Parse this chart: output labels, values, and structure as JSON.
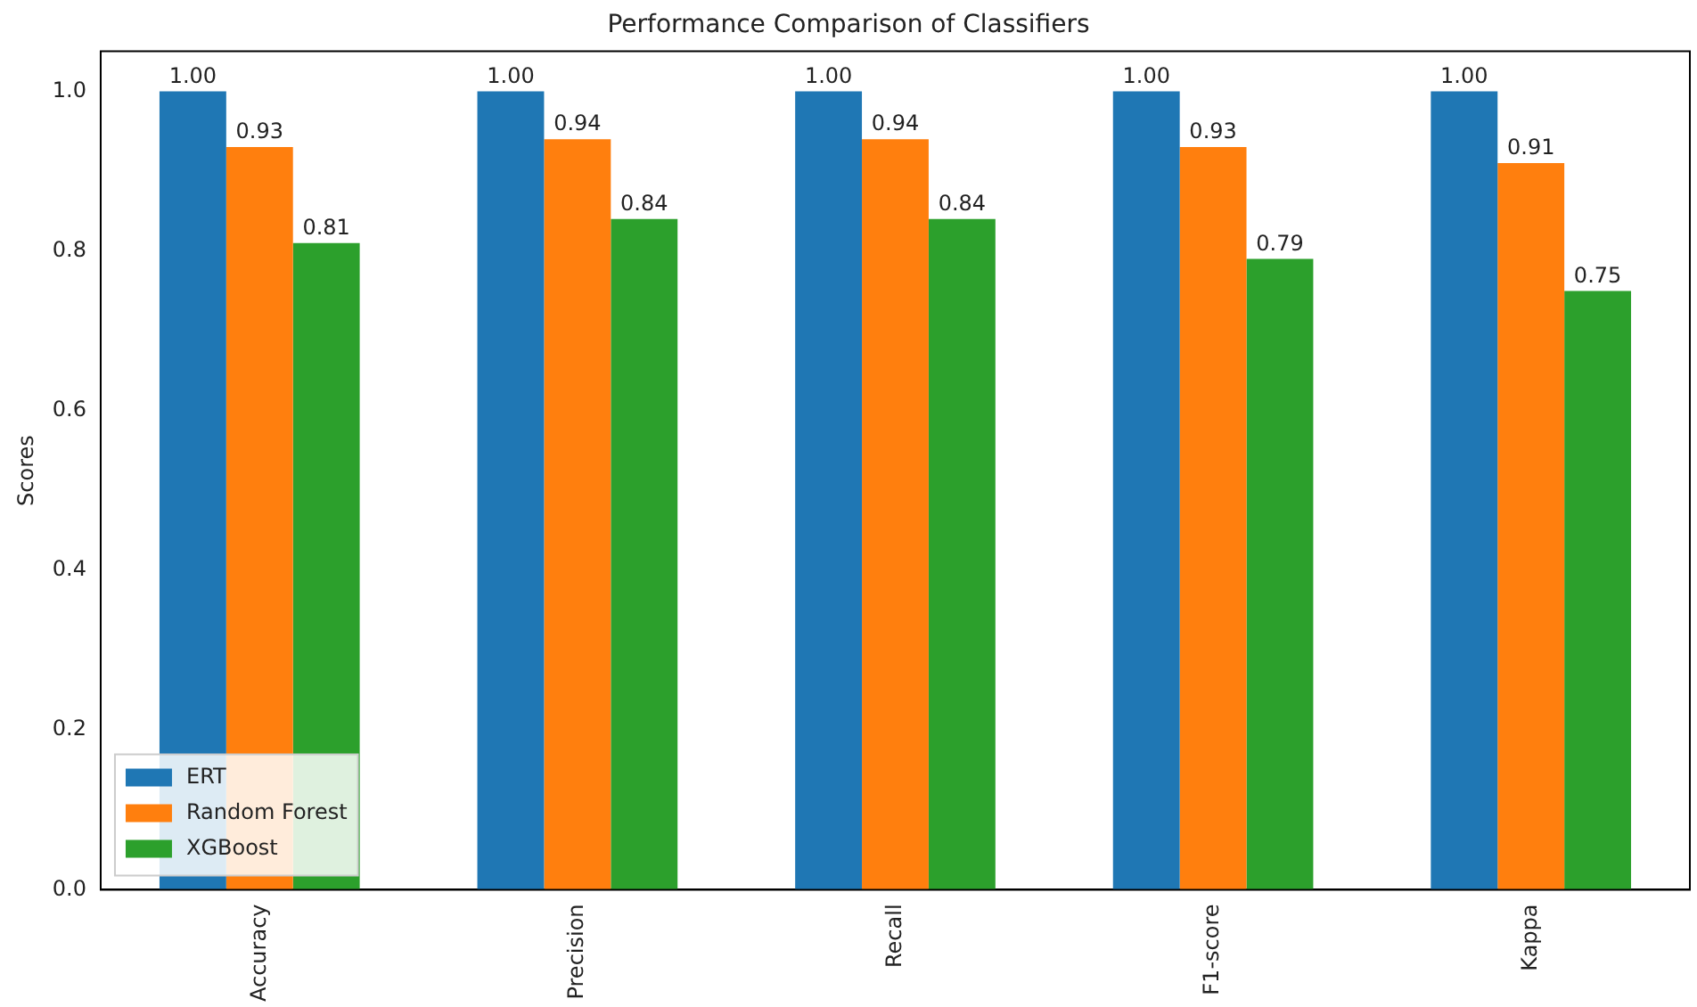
{
  "chart_data": {
    "type": "bar",
    "title": "Performance Comparison of Classifiers",
    "ylabel": "Scores",
    "categories": [
      "Accuracy",
      "Precision",
      "Recall",
      "F1-score",
      "Kappa"
    ],
    "series": [
      {
        "name": "ERT",
        "color": "#1f77b4",
        "values": [
          1.0,
          1.0,
          1.0,
          1.0,
          1.0
        ],
        "value_labels": [
          "1.00",
          "1.00",
          "1.00",
          "1.00",
          "1.00"
        ]
      },
      {
        "name": "Random Forest",
        "color": "#ff7f0e",
        "values": [
          0.93,
          0.94,
          0.94,
          0.93,
          0.91
        ],
        "value_labels": [
          "0.93",
          "0.94",
          "0.94",
          "0.93",
          "0.91"
        ]
      },
      {
        "name": "XGBoost",
        "color": "#2ca02c",
        "values": [
          0.81,
          0.84,
          0.84,
          0.79,
          0.75
        ],
        "value_labels": [
          "0.81",
          "0.84",
          "0.84",
          "0.79",
          "0.75"
        ]
      }
    ],
    "ylim": [
      0,
      1.05
    ],
    "yticks": [
      {
        "value": 0,
        "label": "0.0"
      },
      {
        "value": 0.2,
        "label": "0.2"
      },
      {
        "value": 0.4,
        "label": "0.4"
      },
      {
        "value": 0.6,
        "label": "0.6"
      },
      {
        "value": 0.8,
        "label": "0.8"
      },
      {
        "value": 1,
        "label": "1.0"
      }
    ],
    "grid": false,
    "legend": "bottom left"
  }
}
